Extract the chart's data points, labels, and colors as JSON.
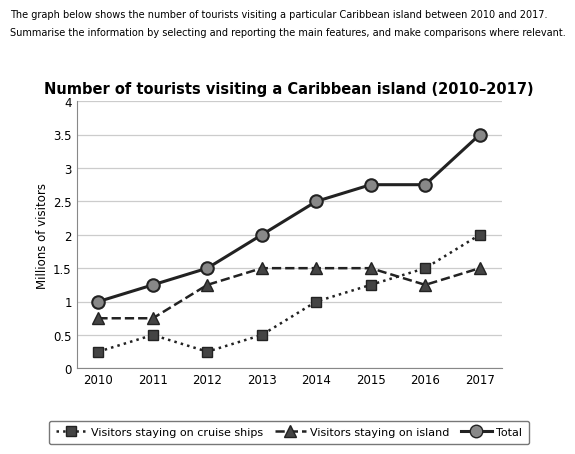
{
  "title": "Number of tourists visiting a Caribbean island (2010–2017)",
  "header_line1": "The graph below shows the number of tourists visiting a particular Caribbean island between 2010 and 2017.",
  "header_line2": "Summarise the information by selecting and reporting the main features, and make comparisons where relevant.",
  "ylabel": "Millions of visitors",
  "years": [
    2010,
    2011,
    2012,
    2013,
    2014,
    2015,
    2016,
    2017
  ],
  "cruise_ships": [
    0.25,
    0.5,
    0.25,
    0.5,
    1.0,
    1.25,
    1.5,
    2.0
  ],
  "on_island": [
    0.75,
    0.75,
    1.25,
    1.5,
    1.5,
    1.5,
    1.25,
    1.5
  ],
  "total": [
    1.0,
    1.25,
    1.5,
    2.0,
    2.5,
    2.75,
    2.75,
    3.5
  ],
  "ylim": [
    0,
    4
  ],
  "yticks": [
    0,
    0.5,
    1.0,
    1.5,
    2.0,
    2.5,
    3.0,
    3.5,
    4.0
  ],
  "line_color": "#222222",
  "grid_color": "#cccccc",
  "background_color": "#ffffff",
  "legend_cruise_label": "Visitors staying on cruise ships",
  "legend_island_label": "Visitors staying on island",
  "legend_total_label": "Total",
  "marker_gray": "#888888",
  "marker_dark": "#444444"
}
